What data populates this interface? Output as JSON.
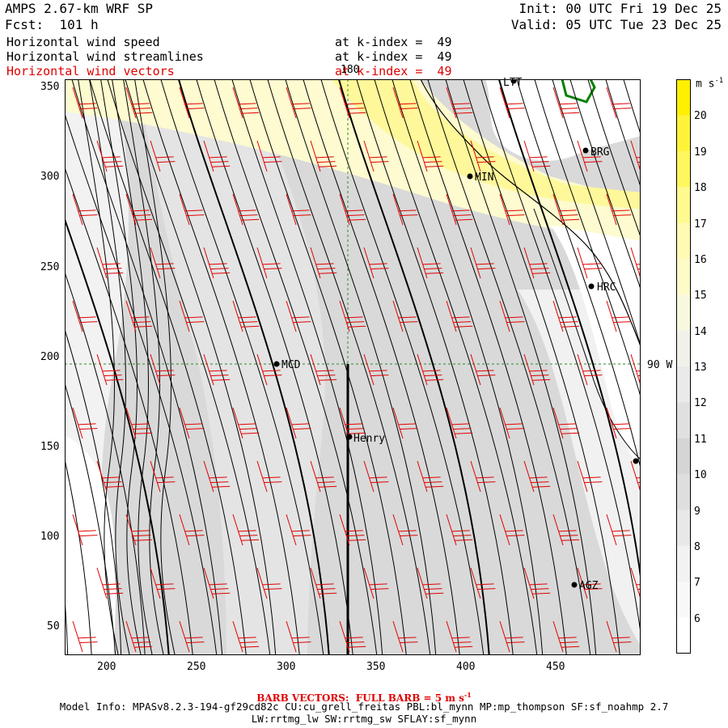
{
  "header": {
    "model_title": "AMPS 2.67-km WRF SP",
    "forecast": "Fcst:  101 h",
    "init": "Init: 00 UTC Fri 19 Dec 25",
    "valid": "Valid: 05 UTC Tue 23 Dec 25",
    "fields": [
      {
        "name": "Horizontal wind speed",
        "level": "at k-index =  49",
        "color": "#000000"
      },
      {
        "name": "Horizontal wind streamlines",
        "level": "at k-index =  49",
        "color": "#000000"
      },
      {
        "name": "Horizontal wind vectors",
        "level": "at k-index =  49",
        "color": "#e00000"
      }
    ]
  },
  "map": {
    "x_ticks": [
      "200",
      "250",
      "300",
      "350",
      "400",
      "450"
    ],
    "y_ticks": [
      "350",
      "300",
      "250",
      "200",
      "150",
      "100",
      "50"
    ],
    "grid_labels": {
      "meridian": "180",
      "parallel": "90 W"
    },
    "stations": [
      "LTT",
      "BRG",
      "MIN",
      "HRC",
      "MCD",
      "Henry",
      "AGZ"
    ]
  },
  "colorbar": {
    "unit": "m s",
    "unit_exp": "-1",
    "labels": [
      "20",
      "19",
      "18",
      "17",
      "16",
      "15",
      "14",
      "13",
      "12",
      "11",
      "10",
      "9",
      "8",
      "7",
      "6"
    ],
    "colors": [
      "#fff000",
      "#fff33a",
      "#fff75e",
      "#fffa90",
      "#fffbb5",
      "#fdfcc8",
      "#f8f8de",
      "#f1f1ea",
      "#eaeaea",
      "#e0e0e0",
      "#d5d5d5",
      "#dedede",
      "#e8e8e8",
      "#f2f2f2",
      "#f8f8f8",
      "#ffffff"
    ]
  },
  "footer": {
    "barb_note": "BARB VECTORS:  FULL BARB = 5 m s",
    "barb_exp": "-1",
    "model_info_1": "Model Info: MPASv8.2.3-194-gf29cd82c CU:cu_grell_freitas PBL:bl_mynn MP:mp_thompson SF:sf_noahmp 2.7",
    "model_info_2": "LW:rrtmg_lw SW:rrtmg_sw SFLAY:sf_mynn"
  },
  "colors": {
    "barb": "#e00000",
    "streamline": "#000000",
    "grid": "#2a8a2a",
    "coast": "#000000"
  }
}
